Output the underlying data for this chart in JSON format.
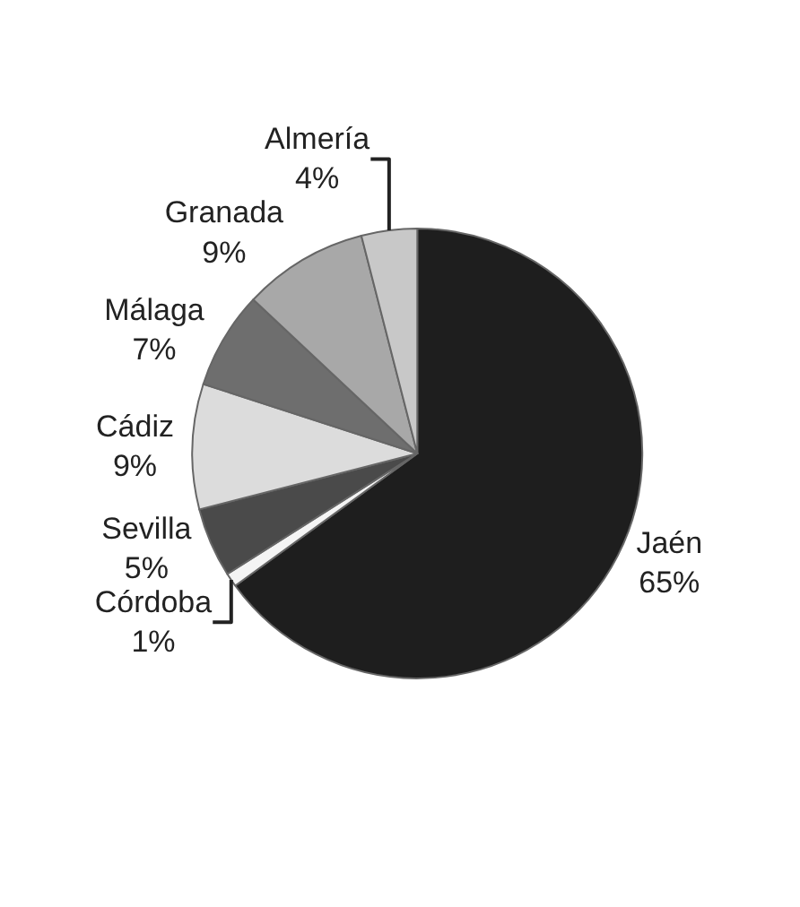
{
  "chart_data": {
    "type": "pie",
    "categories": [
      "Jaén",
      "Córdoba",
      "Sevilla",
      "Cádiz",
      "Málaga",
      "Granada",
      "Almería"
    ],
    "values": [
      65,
      1,
      5,
      9,
      7,
      9,
      4
    ],
    "value_labels": [
      "65%",
      "1%",
      "5%",
      "9%",
      "7%",
      "9%",
      "4%"
    ],
    "colors": [
      "#1e1e1e",
      "#f4f4f4",
      "#4a4a4a",
      "#dcdcdc",
      "#6e6e6e",
      "#a8a8a8",
      "#c8c8c8"
    ],
    "legend": false
  }
}
